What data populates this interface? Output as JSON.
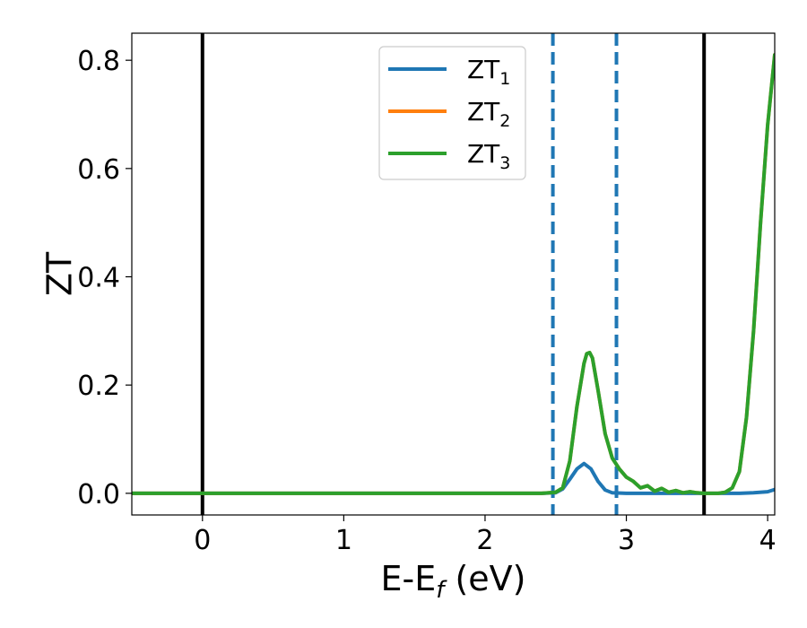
{
  "chart_data": {
    "type": "line",
    "title": "",
    "xlabel": "E-E",
    "xlabel_sub": "f",
    "xlabel_unit": " (eV)",
    "ylabel": "ZT",
    "xlim": [
      -0.5,
      4.05
    ],
    "ylim": [
      -0.04,
      0.85
    ],
    "xticks": [
      0,
      1,
      2,
      3,
      4
    ],
    "xtick_labels": [
      "0",
      "1",
      "2",
      "3",
      "4"
    ],
    "yticks": [
      0.0,
      0.2,
      0.4,
      0.6,
      0.8
    ],
    "ytick_labels": [
      "0.0",
      "0.2",
      "0.4",
      "0.6",
      "0.8"
    ],
    "grid": false,
    "legend_position": "upper-center",
    "vlines_solid": [
      0.0,
      3.55
    ],
    "vlines_dashed": [
      2.48,
      2.93
    ],
    "colors": {
      "ZT1": "#1f77b4",
      "ZT2": "#ff7f0e",
      "ZT3": "#2ca02c",
      "solid_vline": "#000000",
      "dashed_vline": "#1f77b4"
    },
    "series": [
      {
        "name": "ZT",
        "sub": "1",
        "color": "#1f77b4",
        "x": [
          -0.5,
          2.4,
          2.5,
          2.55,
          2.6,
          2.65,
          2.7,
          2.75,
          2.8,
          2.85,
          2.9,
          3.0,
          3.5,
          3.7,
          3.8,
          3.9,
          4.0,
          4.05
        ],
        "y": [
          0.0,
          0.0,
          0.001,
          0.008,
          0.026,
          0.045,
          0.055,
          0.045,
          0.022,
          0.006,
          0.001,
          0.0,
          0.0,
          0.0,
          0.0,
          0.001,
          0.003,
          0.007
        ]
      },
      {
        "name": "ZT",
        "sub": "2",
        "color": "#ff7f0e",
        "x": [
          -0.5,
          2.4,
          2.5,
          2.55,
          2.6,
          2.65,
          2.7,
          2.72,
          2.74,
          2.76,
          2.8,
          2.85,
          2.9,
          2.95,
          3.0,
          3.05,
          3.1,
          3.15,
          3.2,
          3.25,
          3.3,
          3.35,
          3.4,
          3.45,
          3.5,
          3.55,
          3.6,
          3.65,
          3.7,
          3.75,
          3.8,
          3.85,
          3.9,
          3.95,
          4.0,
          4.05
        ],
        "y": [
          0.0,
          0.0,
          0.002,
          0.01,
          0.06,
          0.16,
          0.24,
          0.258,
          0.26,
          0.25,
          0.19,
          0.11,
          0.065,
          0.045,
          0.03,
          0.022,
          0.01,
          0.014,
          0.004,
          0.009,
          0.002,
          0.005,
          0.001,
          0.003,
          0.001,
          0.0,
          0.0,
          0.0,
          0.002,
          0.01,
          0.04,
          0.14,
          0.3,
          0.5,
          0.68,
          0.81
        ]
      },
      {
        "name": "ZT",
        "sub": "3",
        "color": "#2ca02c",
        "x": [
          -0.5,
          2.4,
          2.5,
          2.55,
          2.6,
          2.65,
          2.7,
          2.72,
          2.74,
          2.76,
          2.8,
          2.85,
          2.9,
          2.95,
          3.0,
          3.05,
          3.1,
          3.15,
          3.2,
          3.25,
          3.3,
          3.35,
          3.4,
          3.45,
          3.5,
          3.55,
          3.6,
          3.65,
          3.7,
          3.75,
          3.8,
          3.85,
          3.9,
          3.95,
          4.0,
          4.05
        ],
        "y": [
          0.0,
          0.0,
          0.002,
          0.01,
          0.06,
          0.16,
          0.24,
          0.258,
          0.26,
          0.25,
          0.19,
          0.11,
          0.065,
          0.045,
          0.03,
          0.022,
          0.01,
          0.014,
          0.004,
          0.009,
          0.002,
          0.005,
          0.001,
          0.003,
          0.001,
          0.0,
          0.0,
          0.0,
          0.002,
          0.01,
          0.04,
          0.14,
          0.3,
          0.5,
          0.68,
          0.81
        ]
      }
    ]
  }
}
